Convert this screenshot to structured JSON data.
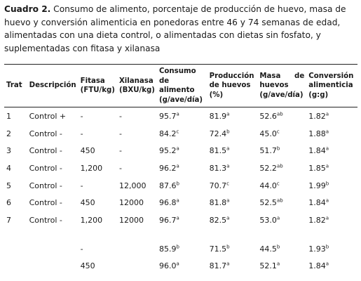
{
  "caption": {
    "label": "Cuadro 2.",
    "text": " Consumo de alimento, porcentaje de producción de huevo, masa de huevo y conversión alimenticia en ponedoras entre 46 y 74 semanas de edad, alimentadas con una dieta control, o alimentadas con dietas sin fosfato, y suplementadas con fitasa y xilanasa"
  },
  "headers": [
    "Trat",
    "Descripción",
    "Fitasa (FTU/kg)",
    "Xilanasa (BXU/kg)",
    "Consumo de alimento (g/ave/día)",
    "Producción de huevos (%)",
    "Masa de huevos (g/ave/día)",
    "Conversión alimenticia (g:g)"
  ],
  "rows": [
    {
      "trat": "1",
      "desc": "Control +",
      "fitasa": "-",
      "xilanasa": "-",
      "consumo": "95.7",
      "consumo_sup": "a",
      "prod": "81.9",
      "prod_sup": "a",
      "masa": "52.6",
      "masa_sup": "ab",
      "conv": "1.82",
      "conv_sup": "a"
    },
    {
      "trat": "2",
      "desc": "Control -",
      "fitasa": "-",
      "xilanasa": "-",
      "consumo": "84.2",
      "consumo_sup": "c",
      "prod": "72.4",
      "prod_sup": "b",
      "masa": "45.0",
      "masa_sup": "c",
      "conv": "1.88",
      "conv_sup": "a"
    },
    {
      "trat": "3",
      "desc": "Control -",
      "fitasa": "450",
      "xilanasa": "-",
      "consumo": "95.2",
      "consumo_sup": "a",
      "prod": "81.5",
      "prod_sup": "a",
      "masa": "51.7",
      "masa_sup": "b",
      "conv": "1.84",
      "conv_sup": "a"
    },
    {
      "trat": "4",
      "desc": "Control -",
      "fitasa": "1,200",
      "xilanasa": "-",
      "consumo": "96.2",
      "consumo_sup": "a",
      "prod": "81.3",
      "prod_sup": "a",
      "masa": "52.2",
      "masa_sup": "ab",
      "conv": "1.85",
      "conv_sup": "a"
    },
    {
      "trat": "5",
      "desc": "Control -",
      "fitasa": "-",
      "xilanasa": "12,000",
      "consumo": "87.6",
      "consumo_sup": "b",
      "prod": "70.7",
      "prod_sup": "c",
      "masa": "44.0",
      "masa_sup": "c",
      "conv": "1.99",
      "conv_sup": "b"
    },
    {
      "trat": "6",
      "desc": "Control -",
      "fitasa": "450",
      "xilanasa": "12000",
      "consumo": "96.8",
      "consumo_sup": "a",
      "prod": "81.8",
      "prod_sup": "a",
      "masa": "52.5",
      "masa_sup": "ab",
      "conv": "1.84",
      "conv_sup": "a"
    },
    {
      "trat": "7",
      "desc": "Control -",
      "fitasa": "1,200",
      "xilanasa": "12000",
      "consumo": "96.7",
      "consumo_sup": "a",
      "prod": "82.5",
      "prod_sup": "a",
      "masa": "53.0",
      "masa_sup": "a",
      "conv": "1.82",
      "conv_sup": "a"
    }
  ],
  "summary_rows": [
    {
      "trat": "",
      "desc": "",
      "fitasa": "-",
      "xilanasa": "",
      "consumo": "85.9",
      "consumo_sup": "b",
      "prod": "71.5",
      "prod_sup": "b",
      "masa": "44.5",
      "masa_sup": "b",
      "conv": "1.93",
      "conv_sup": "b"
    },
    {
      "trat": "",
      "desc": "",
      "fitasa": "450",
      "xilanasa": "",
      "consumo": "96.0",
      "consumo_sup": "a",
      "prod": "81.7",
      "prod_sup": "a",
      "masa": "52.1",
      "masa_sup": "a",
      "conv": "1.84",
      "conv_sup": "a"
    }
  ]
}
